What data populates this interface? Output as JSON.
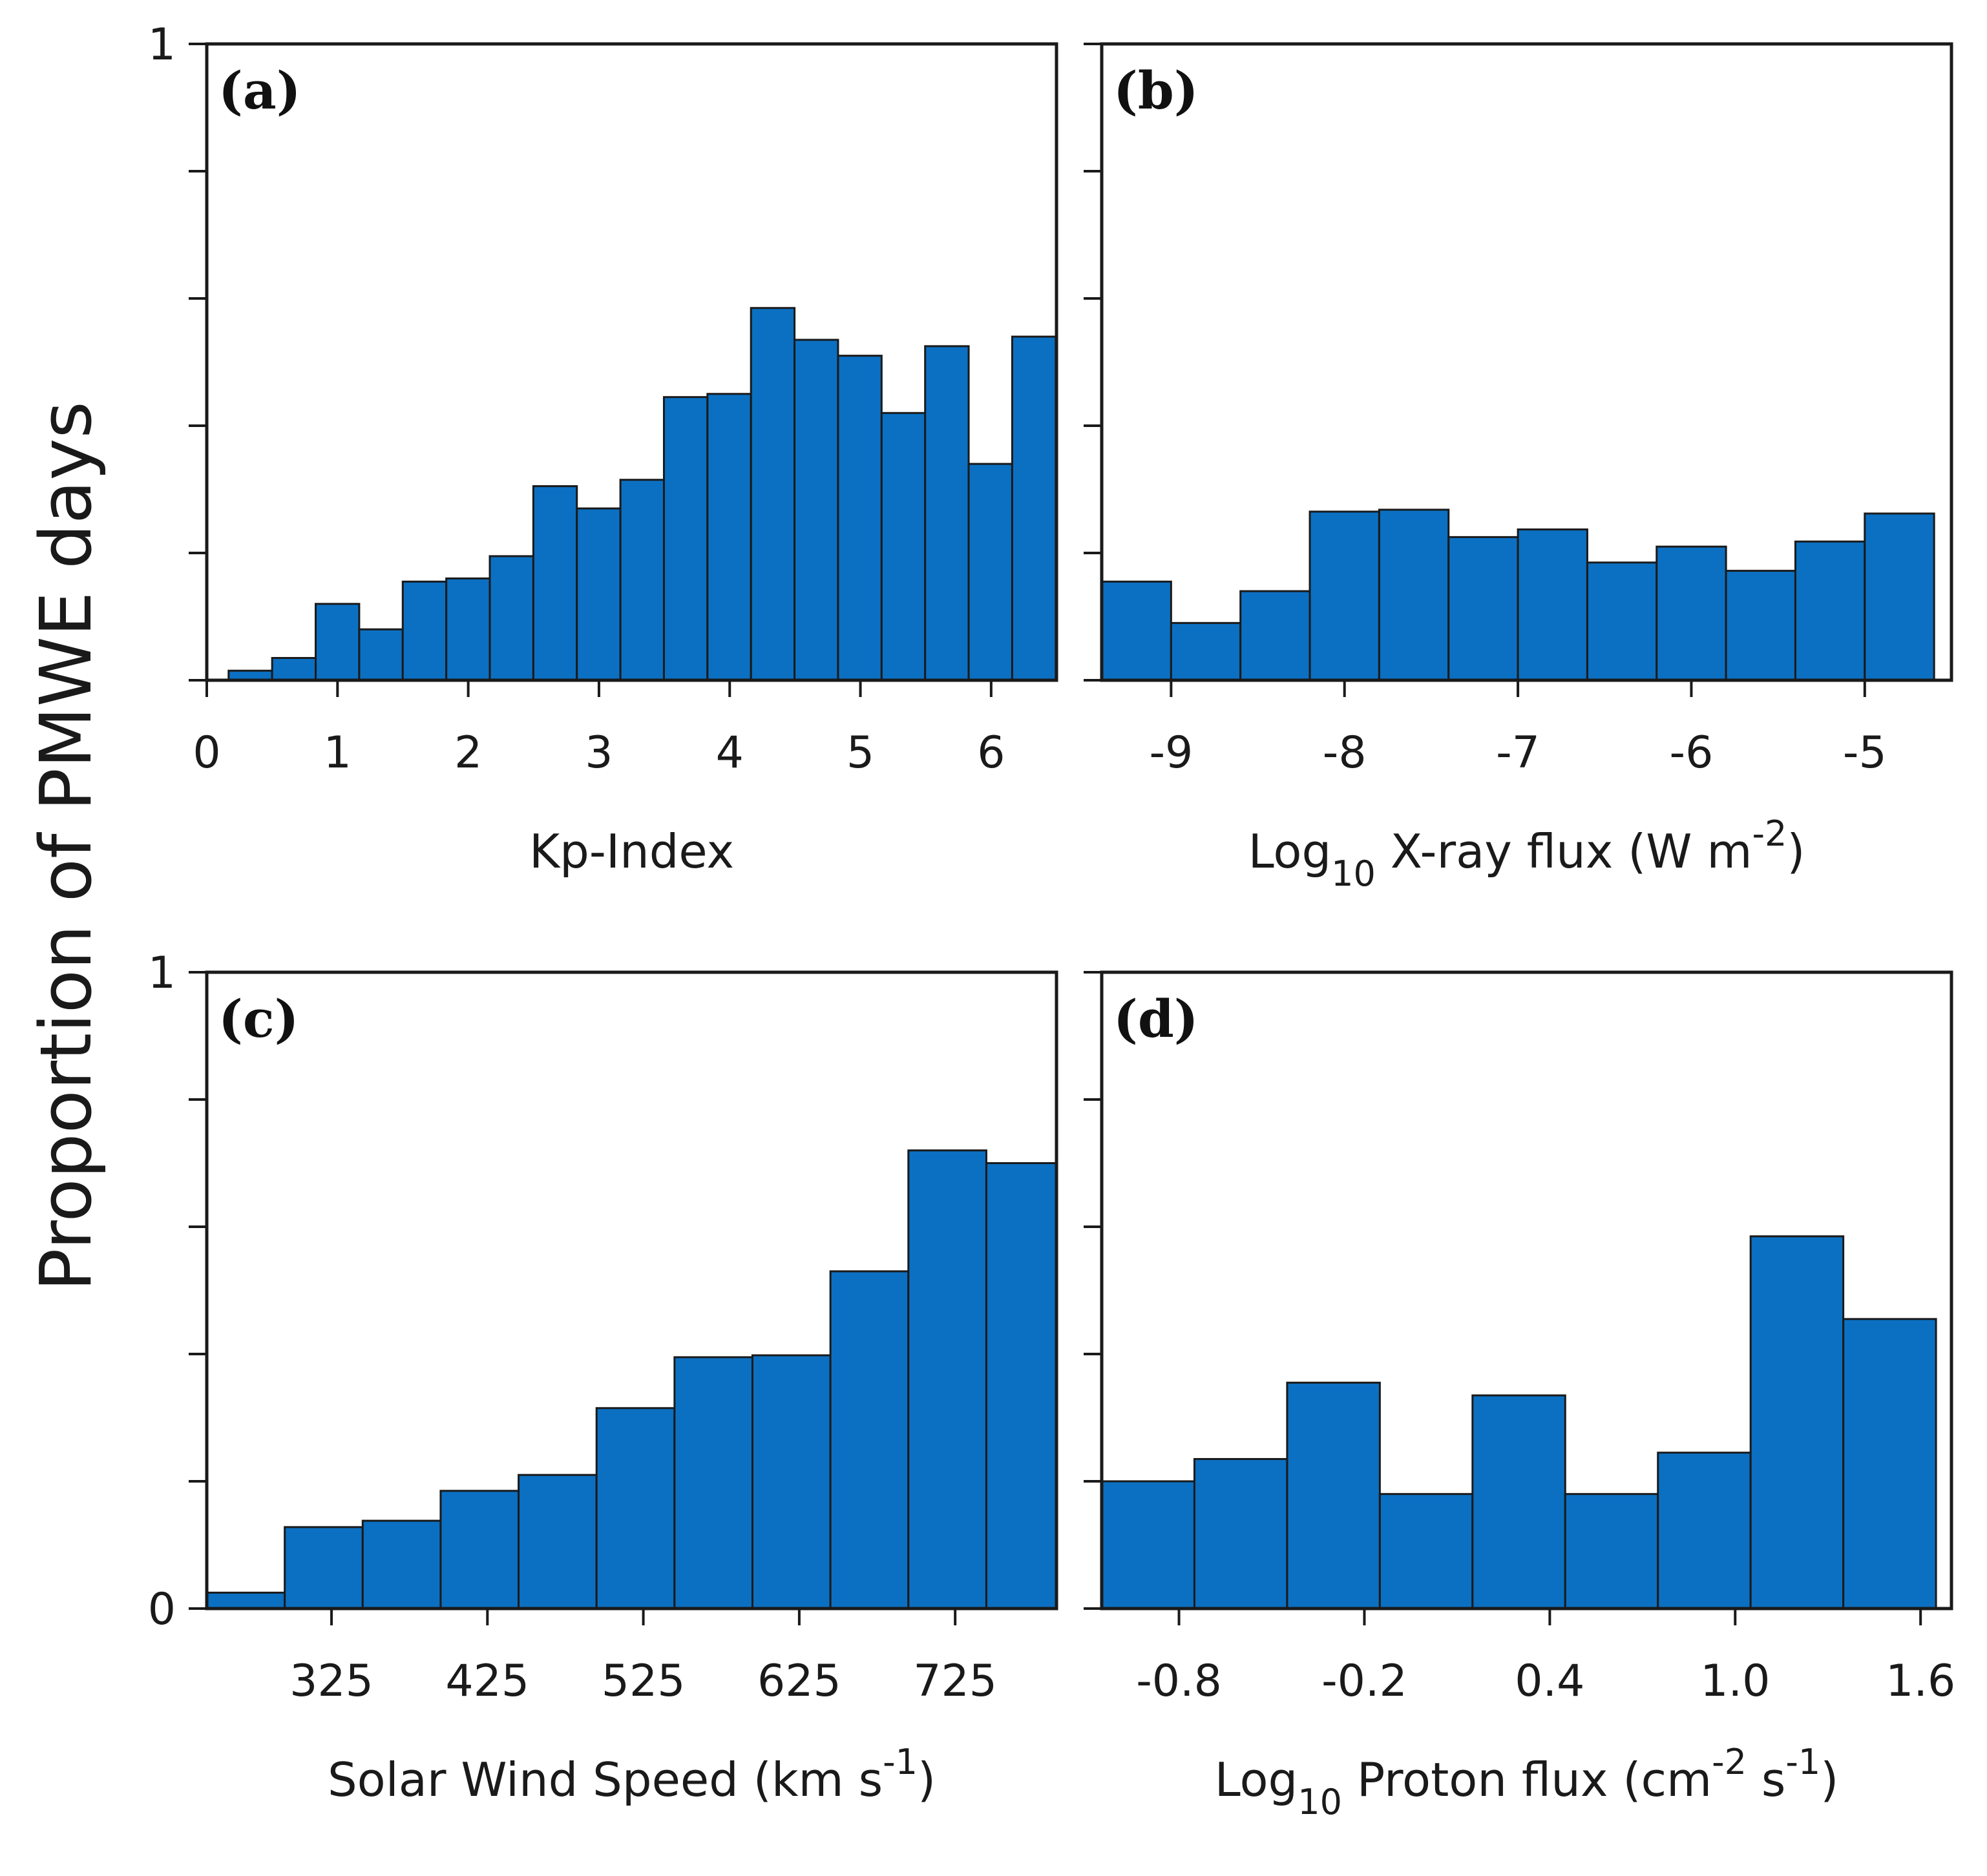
{
  "figure": {
    "ylabel": "Proportion of PMWE days",
    "colors": {
      "bar": "#0b70c2",
      "edge": "#1a1a1a"
    }
  },
  "chart_data": [
    {
      "id": "a",
      "type": "bar",
      "panel_label": "(a)",
      "xlabel": {
        "main": "Kp-Index"
      },
      "xlim": [
        0,
        6.5
      ],
      "ylim": [
        0,
        1
      ],
      "bin_width": 0.333,
      "bin_start": 0.167,
      "values": [
        0.015,
        0.035,
        0.12,
        0.08,
        0.155,
        0.16,
        0.195,
        0.305,
        0.27,
        0.315,
        0.445,
        0.45,
        0.585,
        0.535,
        0.51,
        0.42,
        0.525,
        0.34,
        0.54
      ],
      "xticks": [
        0,
        1,
        2,
        3,
        4,
        5,
        6
      ],
      "xtick_labels": [
        "0",
        "1",
        "2",
        "3",
        "4",
        "5",
        "6"
      ],
      "ytick_labels": [
        "1"
      ],
      "yticks_minor": [
        0,
        0.2,
        0.4,
        0.6,
        0.8,
        1
      ]
    },
    {
      "id": "b",
      "type": "bar",
      "panel_label": "(b)",
      "xlabel": {
        "pre": "Log",
        "sub": "10",
        "mid": " X-ray flux (W m",
        "sup": "-2",
        "post": ")"
      },
      "xlim": [
        -9.4,
        -4.5
      ],
      "ylim": [
        0,
        1
      ],
      "bin_width": 0.4,
      "bin_start": -9.4,
      "values": [
        0.155,
        0.09,
        0.14,
        0.265,
        0.268,
        0.225,
        0.237,
        0.185,
        0.21,
        0.172,
        0.218,
        0.262
      ],
      "xticks": [
        -9,
        -8,
        -7,
        -6,
        -5
      ],
      "xtick_labels": [
        "-9",
        "-8",
        "-7",
        "-6",
        "-5"
      ],
      "ytick_labels": [],
      "yticks_minor": [
        0,
        0.2,
        0.4,
        0.6,
        0.8,
        1
      ]
    },
    {
      "id": "c",
      "type": "bar",
      "panel_label": "(c)",
      "xlabel": {
        "pre": "Solar Wind Speed (km s",
        "sup": "-1",
        "post": ")"
      },
      "xlim": [
        245,
        790
      ],
      "ylim": [
        0,
        1
      ],
      "bin_width": 50,
      "bin_start": 245,
      "values": [
        0.025,
        0.128,
        0.138,
        0.185,
        0.21,
        0.315,
        0.395,
        0.398,
        0.53,
        0.72,
        0.7
      ],
      "xticks": [
        325,
        425,
        525,
        625,
        725
      ],
      "xtick_labels": [
        "325",
        "425",
        "525",
        "625",
        "725"
      ],
      "ytick_labels": [
        "1",
        "0"
      ],
      "yticks_minor": [
        0,
        0.2,
        0.4,
        0.6,
        0.8,
        1
      ]
    },
    {
      "id": "d",
      "type": "bar",
      "panel_label": "(d)",
      "xlabel": {
        "pre": "Log",
        "sub": "10",
        "mid": " Proton flux (cm",
        "sup": "-2",
        "mid2": " s",
        "sup2": "-1",
        "post": ")"
      },
      "xlim": [
        -1.05,
        1.7
      ],
      "ylim": [
        0,
        1
      ],
      "bin_width": 0.3,
      "bin_start": -1.05,
      "values": [
        0.2,
        0.235,
        0.355,
        0.18,
        0.335,
        0.18,
        0.245,
        0.585,
        0.455
      ],
      "xticks": [
        -0.8,
        -0.2,
        0.4,
        1.0,
        1.6
      ],
      "xtick_labels": [
        "-0.8",
        "-0.2",
        "0.4",
        "1.0",
        "1.6"
      ],
      "ytick_labels": [],
      "yticks_minor": [
        0,
        0.2,
        0.4,
        0.6,
        0.8,
        1
      ]
    }
  ]
}
